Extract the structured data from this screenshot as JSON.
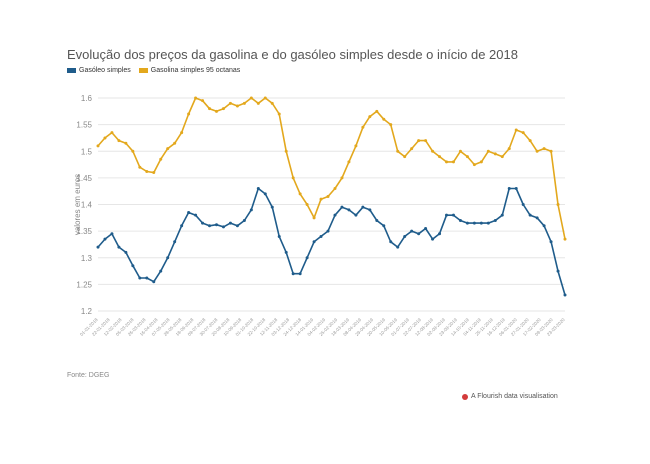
{
  "chart_data": {
    "type": "line",
    "title": "Evolução dos preços da gasolina e do gasóleo simples desde o início de 2018",
    "ylabel": "valores em euros",
    "xlabel": "",
    "ylim": [
      1.2,
      1.6
    ],
    "yticks": [
      "1.6",
      "1.55",
      "1.5",
      "1.45",
      "1.4",
      "1.35",
      "1.3",
      "1.25",
      "1.2"
    ],
    "grid": true,
    "legend_position": "top-left",
    "source": "Fonte: DGEG",
    "credit": "A Flourish data visualisation",
    "x_tick_labels": [
      "01-01-2018",
      "22-01-2018",
      "12-02-2018",
      "05-03-2018",
      "26-03-2018",
      "16-04-2018",
      "07-05-2018",
      "28-05-2018",
      "18-06-2018",
      "09-07-2018",
      "30-07-2018",
      "20-08-2018",
      "10-09-2018",
      "01-10-2018",
      "22-10-2018",
      "12-11-2018",
      "03-12-2018",
      "24-12-2018",
      "14-01-2019",
      "04-02-2019",
      "25-02-2019",
      "18-03-2019",
      "08-04-2019",
      "29-04-2019",
      "20-05-2019",
      "10-06-2019",
      "01-07-2019",
      "22-07-2019",
      "12-08-2019",
      "02-09-2019",
      "23-09-2019",
      "14-10-2019",
      "04-11-2019",
      "25-11-2019",
      "16-12-2019",
      "06-01-2020",
      "27-01-2020",
      "17-02-2020",
      "09-03-2020",
      "23-03-2020"
    ],
    "series": [
      {
        "name": "Gasóleo simples",
        "color": "#1f5c8b",
        "values": [
          1.32,
          1.335,
          1.345,
          1.32,
          1.31,
          1.285,
          1.262,
          1.262,
          1.255,
          1.275,
          1.3,
          1.33,
          1.36,
          1.385,
          1.38,
          1.365,
          1.36,
          1.362,
          1.358,
          1.365,
          1.36,
          1.37,
          1.39,
          1.43,
          1.42,
          1.395,
          1.34,
          1.31,
          1.27,
          1.27,
          1.3,
          1.33,
          1.34,
          1.35,
          1.38,
          1.395,
          1.39,
          1.38,
          1.395,
          1.39,
          1.37,
          1.36,
          1.33,
          1.32,
          1.34,
          1.35,
          1.345,
          1.355,
          1.335,
          1.345,
          1.38,
          1.38,
          1.37,
          1.365,
          1.365,
          1.365,
          1.365,
          1.37,
          1.38,
          1.43,
          1.43,
          1.4,
          1.38,
          1.375,
          1.36,
          1.33,
          1.275,
          1.23
        ]
      },
      {
        "name": "Gasolina simples 95 octanas",
        "color": "#e3a81d",
        "values": [
          1.51,
          1.525,
          1.535,
          1.52,
          1.515,
          1.5,
          1.47,
          1.462,
          1.46,
          1.485,
          1.505,
          1.515,
          1.535,
          1.57,
          1.6,
          1.595,
          1.58,
          1.575,
          1.58,
          1.59,
          1.585,
          1.59,
          1.6,
          1.59,
          1.6,
          1.59,
          1.57,
          1.5,
          1.45,
          1.42,
          1.4,
          1.375,
          1.41,
          1.415,
          1.43,
          1.45,
          1.48,
          1.51,
          1.545,
          1.565,
          1.575,
          1.56,
          1.55,
          1.5,
          1.49,
          1.505,
          1.52,
          1.52,
          1.5,
          1.49,
          1.48,
          1.48,
          1.5,
          1.49,
          1.475,
          1.48,
          1.5,
          1.495,
          1.49,
          1.505,
          1.54,
          1.535,
          1.52,
          1.5,
          1.505,
          1.5,
          1.4,
          1.335
        ]
      }
    ]
  }
}
